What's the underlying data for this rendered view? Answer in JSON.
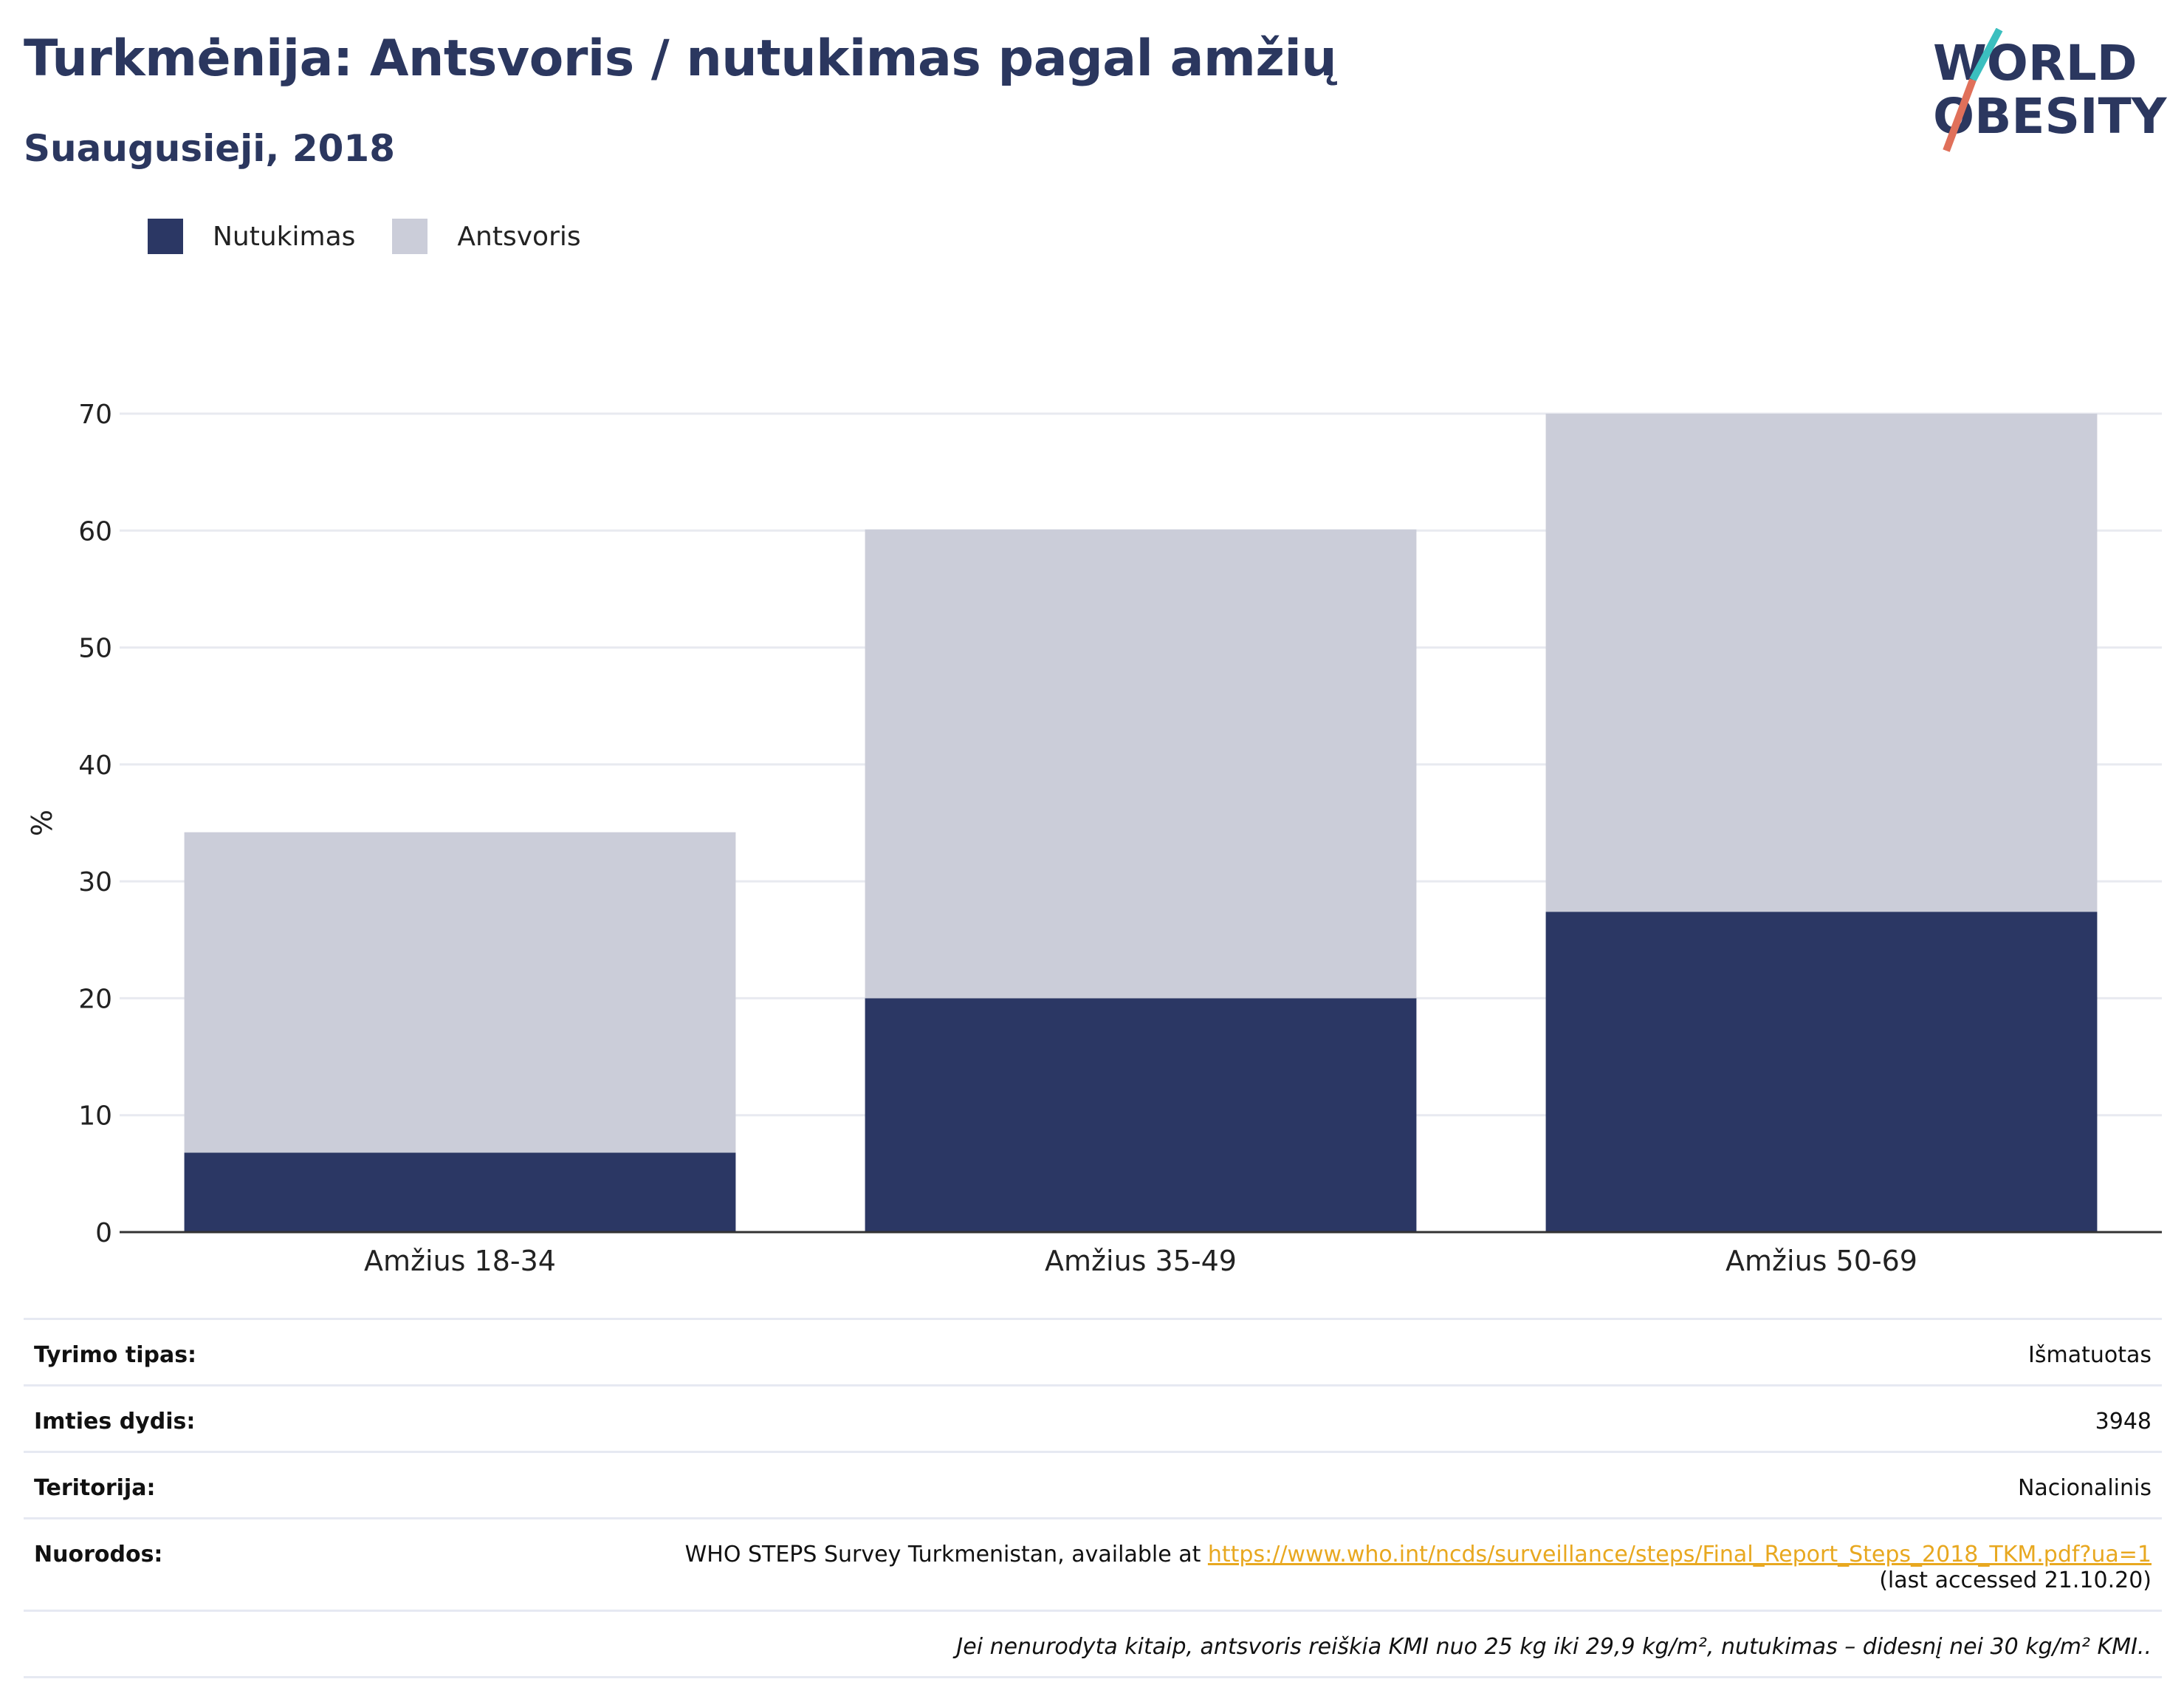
{
  "header": {
    "title": "Turkmėnija: Antsvoris / nutukimas pagal amžių",
    "subtitle": "Suaugusieji, 2018"
  },
  "logo": {
    "line1": "WORLD",
    "line2": "OBESITY",
    "colors": {
      "text": "#2b375f",
      "slash_top": "#3bbfbf",
      "slash_bottom": "#e0705a"
    }
  },
  "chart_data": {
    "type": "bar",
    "stacked": true,
    "categories": [
      "Amžius 18-34",
      "Amžius 35-49",
      "Amžius 50-69"
    ],
    "series": [
      {
        "name": "Nutukimas",
        "color": "#2b3764",
        "values": [
          6.8,
          20.0,
          27.4
        ]
      },
      {
        "name": "Antsvoris",
        "color": "#cbcdd9",
        "values": [
          27.4,
          40.1,
          42.6
        ]
      }
    ],
    "ylabel": "%",
    "ylim": [
      0,
      70
    ],
    "yticks": [
      0,
      10,
      20,
      30,
      40,
      50,
      60,
      70
    ],
    "grid": true,
    "legend_position": "top-left"
  },
  "meta": {
    "rows": [
      {
        "key": "Tyrimo tipas:",
        "value": "Išmatuotas"
      },
      {
        "key": "Imties dydis:",
        "value": "3948"
      },
      {
        "key": "Teritorija:",
        "value": "Nacionalinis"
      }
    ],
    "references": {
      "key": "Nuorodos:",
      "text": "WHO STEPS Survey Turkmenistan, available at ",
      "link": "https://www.who.int/ncds/surveillance/steps/Final_Report_Steps_2018_TKM.pdf?ua=1",
      "accessed": "(last accessed 21.10.20)"
    },
    "note": "Jei nenurodyta kitaip, antsvoris reiškia KMI nuo 25 kg iki 29,9 kg/m², nutukimas – didesnį nei 30 kg/m² KMI.."
  }
}
